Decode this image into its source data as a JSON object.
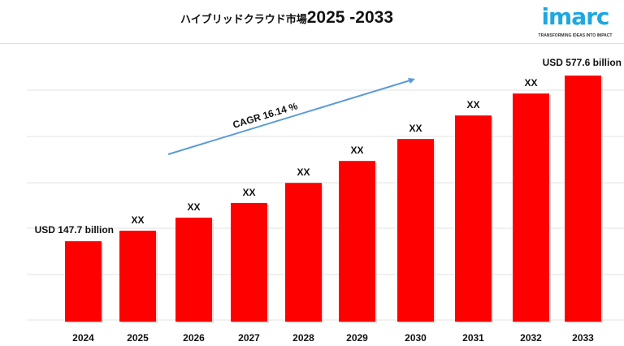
{
  "title": {
    "prefix": "ハイブリッドクラウド市場",
    "years": "2025 -2033"
  },
  "logo": {
    "text": "imarc",
    "tagline": "TRANSFORMING IDEAS INTO IMPACT",
    "color": "#1ea7e1"
  },
  "chart_data": {
    "type": "bar",
    "categories": [
      "2024",
      "2025",
      "2026",
      "2027",
      "2028",
      "2029",
      "2030",
      "2031",
      "2032",
      "2033"
    ],
    "values": [
      147.7,
      175,
      209,
      247,
      299,
      356,
      413,
      474,
      531,
      577.6
    ],
    "data_labels": [
      "USD 147.7 billion",
      "XX",
      "XX",
      "XX",
      "XX",
      "XX",
      "XX",
      "XX",
      "XX",
      "USD 577.6 billion"
    ],
    "unit": "USD billion",
    "bar_color": "#ff0000",
    "grid": true,
    "annotation": {
      "text": "CAGR 16.14 %",
      "arrow_color": "#5b9bd5"
    }
  }
}
